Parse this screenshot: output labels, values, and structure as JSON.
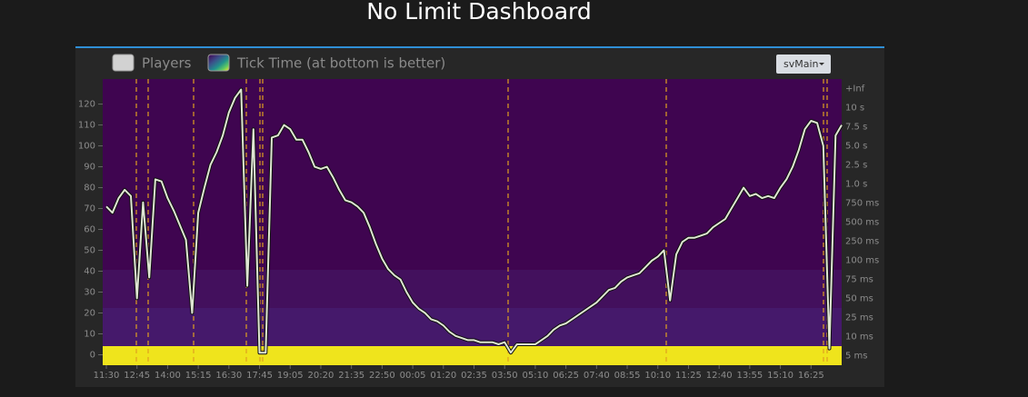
{
  "chart_data": {
    "type": "line",
    "title": "No Limit Dashboard",
    "categories": [
      "11:30",
      null,
      null,
      null,
      null,
      "12:45",
      null,
      null,
      null,
      null,
      "14:00",
      null,
      null,
      null,
      null,
      "15:15",
      null,
      null,
      null,
      null,
      "16:30",
      null,
      null,
      null,
      null,
      "17:45",
      null,
      null,
      null,
      null,
      "19:05",
      null,
      null,
      null,
      null,
      "20:20",
      null,
      null,
      null,
      null,
      "21:35",
      null,
      null,
      null,
      null,
      "22:50",
      null,
      null,
      null,
      null,
      "00:05",
      null,
      null,
      null,
      null,
      "01:20",
      null,
      null,
      null,
      null,
      "02:35",
      null,
      null,
      null,
      null,
      "03:50",
      null,
      null,
      null,
      null,
      "05:10",
      null,
      null,
      null,
      null,
      "06:25",
      null,
      null,
      null,
      null,
      "07:40",
      null,
      null,
      null,
      null,
      "08:55",
      null,
      null,
      null,
      null,
      "10:10",
      null,
      null,
      null,
      null,
      "11:25",
      null,
      null,
      null,
      null,
      "12:40",
      null,
      null,
      null,
      null,
      "13:55",
      null,
      null,
      null,
      null,
      "15:10",
      null,
      null,
      null,
      null,
      "16:25",
      null,
      null,
      null,
      null,
      null
    ],
    "series": [
      {
        "name": "Players",
        "color": "#dfe6d3",
        "values": [
          71,
          68,
          75,
          79,
          76,
          27,
          73,
          37,
          84,
          83,
          75,
          69,
          62,
          55,
          20,
          68,
          80,
          91,
          97,
          105,
          116,
          123,
          127,
          33,
          108,
          1,
          1,
          104,
          105,
          110,
          108,
          103,
          103,
          97,
          90,
          89,
          90,
          85,
          79,
          74,
          73,
          71,
          68,
          61,
          53,
          46,
          41,
          38,
          36,
          30,
          25,
          22,
          20,
          17,
          16,
          14,
          11,
          9,
          8,
          7,
          7,
          6,
          6,
          6,
          5,
          6,
          1,
          5,
          5,
          5,
          5,
          7,
          9,
          12,
          14,
          15,
          17,
          19,
          21,
          23,
          25,
          28,
          31,
          32,
          35,
          37,
          38,
          39,
          42,
          45,
          47,
          50,
          26,
          48,
          54,
          56,
          56,
          57,
          58,
          61,
          63,
          65,
          70,
          75,
          80,
          76,
          77,
          75,
          76,
          75,
          80,
          84,
          90,
          98,
          108,
          112,
          111,
          100,
          3,
          105,
          110
        ]
      }
    ],
    "ylim": [
      -5,
      132
    ],
    "yticks": [
      0,
      10,
      20,
      30,
      40,
      50,
      60,
      70,
      80,
      90,
      100,
      110,
      120
    ],
    "heatmap_name": "Tick Time (at bottom is better)",
    "y2_categories": [
      "5 ms",
      "10 ms",
      "25 ms",
      "50 ms",
      "75 ms",
      "100 ms",
      "250 ms",
      "500 ms",
      "750 ms",
      "1.0 s",
      "2.5 s",
      "5.0 s",
      "7.5 s",
      "10 s",
      "+Inf"
    ],
    "selector": "svMain"
  }
}
